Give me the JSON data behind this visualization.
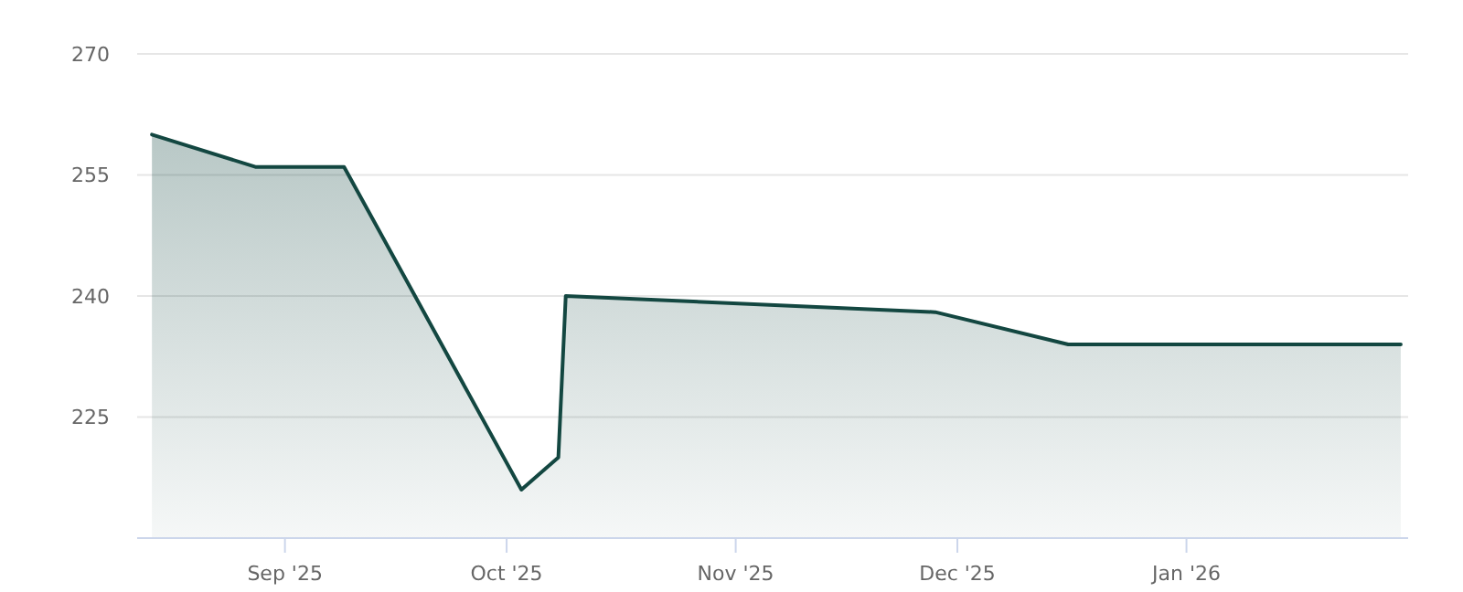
{
  "chart_data": {
    "type": "area",
    "x": [
      "2025-08-14",
      "2025-08-28",
      "2025-09-09",
      "2025-10-03",
      "2025-10-08",
      "2025-10-09",
      "2025-11-28",
      "2025-12-16",
      "2026-01-30"
    ],
    "series": [
      {
        "color": "#134741",
        "values": [
          260,
          256,
          256,
          216,
          220,
          240,
          238,
          234,
          234
        ]
      }
    ],
    "xlim": [
      "2025-08-12",
      "2026-01-31"
    ],
    "xticks": [
      {
        "value": "2025-09-01",
        "label": "Sep '25"
      },
      {
        "value": "2025-10-01",
        "label": "Oct '25"
      },
      {
        "value": "2025-11-01",
        "label": "Nov '25"
      },
      {
        "value": "2025-12-01",
        "label": "Dec '25"
      },
      {
        "value": "2026-01-01",
        "label": "Jan '26"
      }
    ],
    "ylim": [
      210,
      270
    ],
    "yticks": [
      225,
      240,
      255,
      270
    ],
    "grid": "y"
  }
}
